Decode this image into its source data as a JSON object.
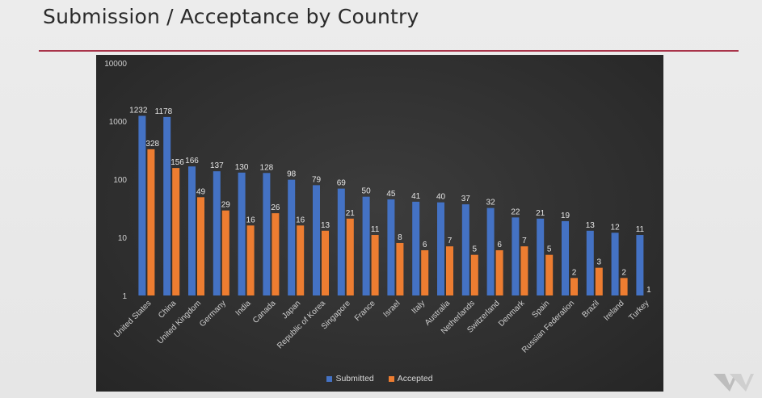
{
  "slide": {
    "title": "Submission / Acceptance by Country"
  },
  "colors": {
    "submitted": "#4472c4",
    "accepted": "#ed7d31",
    "rule": "#a9344a"
  },
  "chart_data": {
    "type": "bar",
    "title": "",
    "xlabel": "",
    "ylabel": "",
    "yscale": "log",
    "ylim": [
      1,
      10000
    ],
    "yticks": [
      "1",
      "10",
      "100",
      "1000",
      "10000"
    ],
    "grid": false,
    "legend_position": "bottom",
    "categories": [
      "United States",
      "China",
      "United Kingdom",
      "Germany",
      "India",
      "Canada",
      "Japan",
      "Republic of Korea",
      "Singapore",
      "France",
      "Israel",
      "Italy",
      "Australia",
      "Netherlands",
      "Switzerland",
      "Denmark",
      "Spain",
      "Russian Federation",
      "Brazil",
      "Ireland",
      "Turkey"
    ],
    "series": [
      {
        "name": "Submitted",
        "values": [
          1232,
          1178,
          166,
          137,
          130,
          128,
          98,
          79,
          69,
          50,
          45,
          41,
          40,
          37,
          32,
          22,
          21,
          19,
          13,
          12,
          11
        ]
      },
      {
        "name": "Accepted",
        "values": [
          328,
          156,
          49,
          29,
          16,
          26,
          16,
          13,
          21,
          11,
          8,
          6,
          7,
          5,
          6,
          7,
          5,
          2,
          3,
          2,
          1
        ]
      }
    ]
  }
}
